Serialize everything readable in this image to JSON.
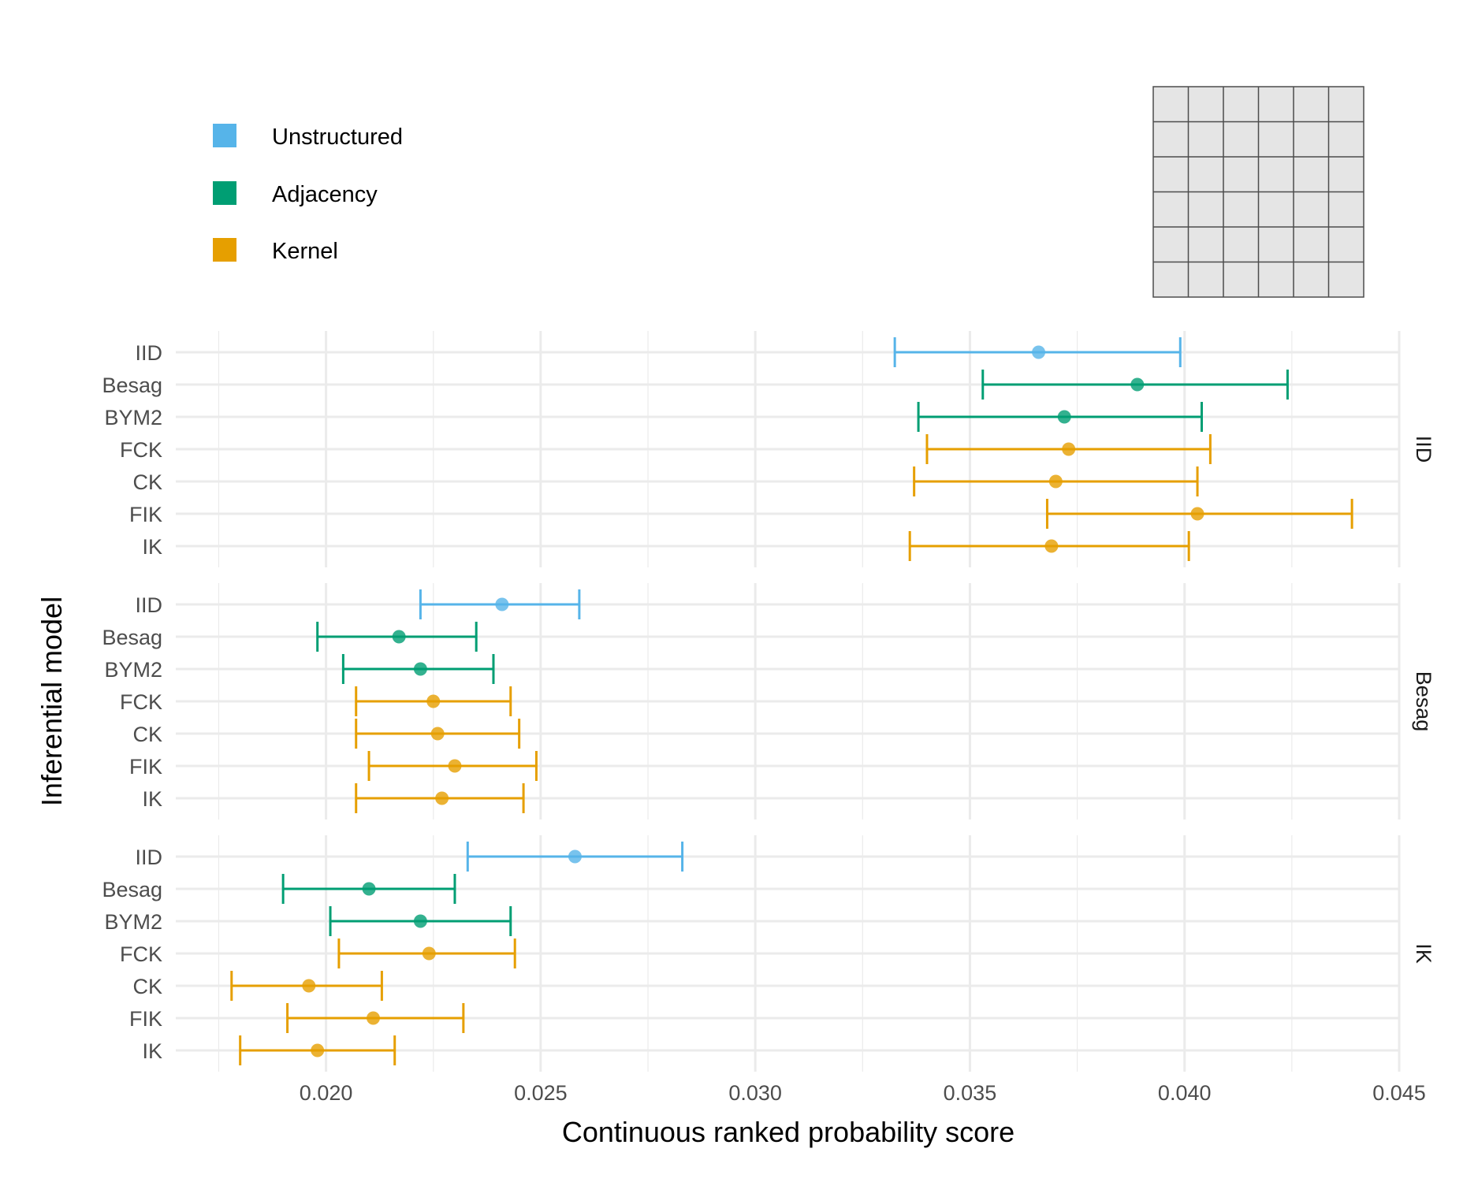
{
  "chart_data": {
    "type": "scatter",
    "subtype": "dot-and-interval",
    "title": "",
    "xlabel": "Continuous ranked probability score",
    "ylabel": "Inferential model",
    "xlim": [
      0.0165,
      0.045
    ],
    "x_ticks": [
      {
        "value": 0.02,
        "label": "0.020"
      },
      {
        "value": 0.025,
        "label": "0.025"
      },
      {
        "value": 0.03,
        "label": "0.030"
      },
      {
        "value": 0.035,
        "label": "0.035"
      },
      {
        "value": 0.04,
        "label": "0.040"
      },
      {
        "value": 0.045,
        "label": "0.045"
      }
    ],
    "grid": true,
    "legend": {
      "placement": "top-left",
      "entries": [
        {
          "name": "Unstructured",
          "color": "#56B4E9"
        },
        {
          "name": "Adjacency",
          "color": "#009E73"
        },
        {
          "name": "Kernel",
          "color": "#E69F00"
        }
      ]
    },
    "inset": {
      "type": "grid",
      "rows": 6,
      "cols": 6,
      "fill": "#e5e5e5",
      "stroke": "#4d4d4d",
      "placement": "top-right"
    },
    "categories": [
      "IID",
      "Besag",
      "BYM2",
      "FCK",
      "CK",
      "FIK",
      "IK"
    ],
    "panels": [
      {
        "label": "IID",
        "points": [
          {
            "model": "IID",
            "group": "Unstructured",
            "estimate": 0.0366,
            "lower": 0.03325,
            "upper": 0.0399
          },
          {
            "model": "Besag",
            "group": "Adjacency",
            "estimate": 0.0389,
            "lower": 0.0353,
            "upper": 0.0424
          },
          {
            "model": "BYM2",
            "group": "Adjacency",
            "estimate": 0.0372,
            "lower": 0.0338,
            "upper": 0.0404
          },
          {
            "model": "FCK",
            "group": "Kernel",
            "estimate": 0.0373,
            "lower": 0.034,
            "upper": 0.0406
          },
          {
            "model": "CK",
            "group": "Kernel",
            "estimate": 0.037,
            "lower": 0.0337,
            "upper": 0.0403
          },
          {
            "model": "FIK",
            "group": "Kernel",
            "estimate": 0.0403,
            "lower": 0.0368,
            "upper": 0.0439
          },
          {
            "model": "IK",
            "group": "Kernel",
            "estimate": 0.0369,
            "lower": 0.0336,
            "upper": 0.0401
          }
        ]
      },
      {
        "label": "Besag",
        "points": [
          {
            "model": "IID",
            "group": "Unstructured",
            "estimate": 0.0241,
            "lower": 0.0222,
            "upper": 0.0259
          },
          {
            "model": "Besag",
            "group": "Adjacency",
            "estimate": 0.0217,
            "lower": 0.0198,
            "upper": 0.0235
          },
          {
            "model": "BYM2",
            "group": "Adjacency",
            "estimate": 0.0222,
            "lower": 0.0204,
            "upper": 0.0239
          },
          {
            "model": "FCK",
            "group": "Kernel",
            "estimate": 0.0225,
            "lower": 0.0207,
            "upper": 0.0243
          },
          {
            "model": "CK",
            "group": "Kernel",
            "estimate": 0.0226,
            "lower": 0.0207,
            "upper": 0.0245
          },
          {
            "model": "FIK",
            "group": "Kernel",
            "estimate": 0.023,
            "lower": 0.021,
            "upper": 0.0249
          },
          {
            "model": "IK",
            "group": "Kernel",
            "estimate": 0.0227,
            "lower": 0.0207,
            "upper": 0.0246
          }
        ]
      },
      {
        "label": "IK",
        "points": [
          {
            "model": "IID",
            "group": "Unstructured",
            "estimate": 0.0258,
            "lower": 0.0233,
            "upper": 0.0283
          },
          {
            "model": "Besag",
            "group": "Adjacency",
            "estimate": 0.021,
            "lower": 0.019,
            "upper": 0.023
          },
          {
            "model": "BYM2",
            "group": "Adjacency",
            "estimate": 0.0222,
            "lower": 0.0201,
            "upper": 0.0243
          },
          {
            "model": "FCK",
            "group": "Kernel",
            "estimate": 0.0224,
            "lower": 0.0203,
            "upper": 0.0244
          },
          {
            "model": "CK",
            "group": "Kernel",
            "estimate": 0.0196,
            "lower": 0.0178,
            "upper": 0.0213
          },
          {
            "model": "FIK",
            "group": "Kernel",
            "estimate": 0.0211,
            "lower": 0.0191,
            "upper": 0.0232
          },
          {
            "model": "IK",
            "group": "Kernel",
            "estimate": 0.0198,
            "lower": 0.018,
            "upper": 0.0216
          }
        ]
      }
    ]
  }
}
